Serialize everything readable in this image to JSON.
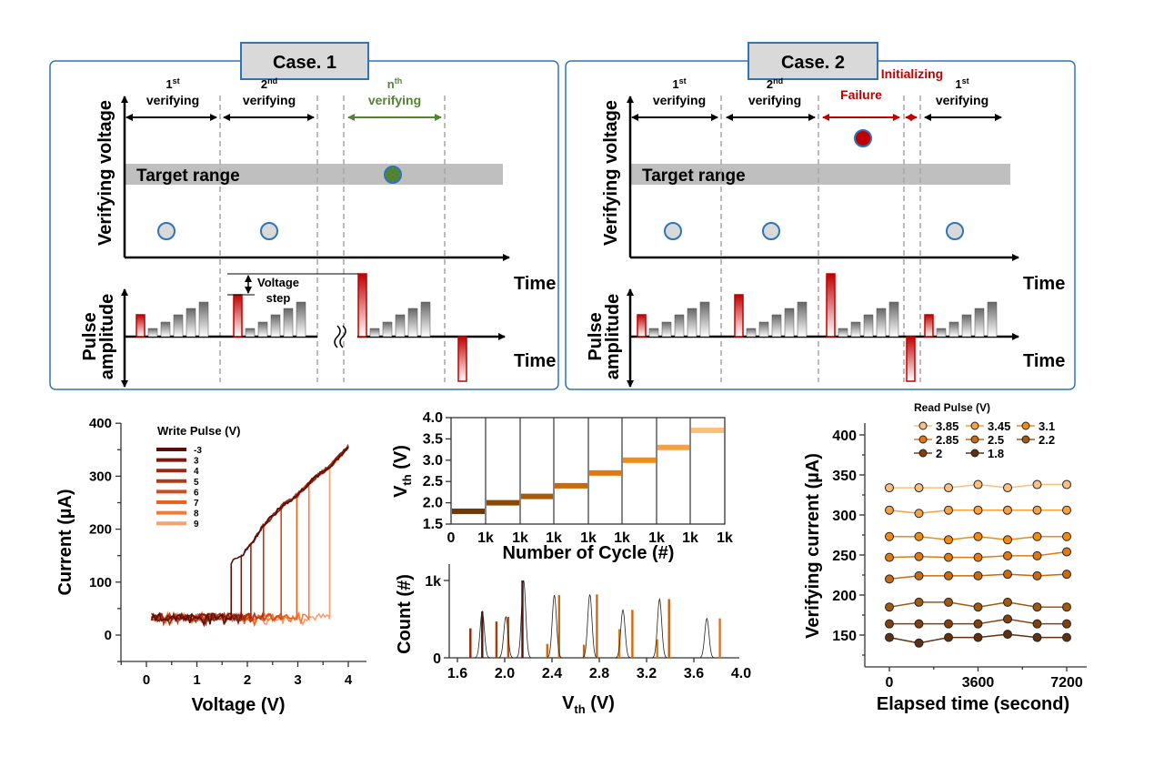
{
  "diagram": {
    "case1": {
      "title": "Case. 1",
      "y_label_top": "Verifying voltage",
      "y_label_bottom": [
        "Pulse",
        "amplitude"
      ],
      "time_label_top": "Time",
      "time_label_bottom": "Time",
      "target_range": "Target range",
      "voltage_step": [
        "Voltage",
        "step"
      ],
      "phases": [
        {
          "num": "1",
          "sup": "st",
          "text": "verifying",
          "color": "#000000"
        },
        {
          "num": "2",
          "sup": "nd",
          "text": "verifying",
          "color": "#000000"
        },
        {
          "num": "n",
          "sup": "th",
          "text": "verifying",
          "color": "#548235"
        }
      ]
    },
    "case2": {
      "title": "Case. 2",
      "y_label_top": "Verifying voltage",
      "y_label_bottom": [
        "Pulse",
        "amplitude"
      ],
      "time_label_top": "Time",
      "time_label_bottom": "Time",
      "target_range": "Target range",
      "phases": [
        {
          "num": "1",
          "sup": "st",
          "text": "verifying",
          "color": "#000000"
        },
        {
          "num": "2",
          "sup": "nd",
          "text": "verifying",
          "color": "#000000"
        },
        {
          "num": "",
          "sup": "",
          "text": "Failure",
          "color": "#c00000"
        },
        {
          "num": "",
          "sup": "",
          "text": "Initializing",
          "color": "#c00000"
        },
        {
          "num": "1",
          "sup": "st",
          "text": "verifying",
          "color": "#000000"
        }
      ]
    },
    "colors": {
      "panel_border": "#2e75b6",
      "title_fill": "#d9d9d9",
      "target_band": "#bfbfbf",
      "success": "#548235",
      "failure": "#c00000",
      "pending": "#d9d9d9"
    }
  },
  "chart_data": [
    {
      "type": "line",
      "xlabel": "Voltage (V)",
      "ylabel": "Current (µA)",
      "xlim": [
        -0.5,
        4.3
      ],
      "ylim": [
        -50,
        400
      ],
      "xticks": [
        "0",
        "1",
        "2",
        "3",
        "4"
      ],
      "yticks": [
        "0",
        "100",
        "200",
        "300",
        "400"
      ],
      "legend_title": "Write Pulse (V)",
      "legend_position": "top-left",
      "off_state_current": 30,
      "on_state_curve": {
        "x": [
          1.68,
          1.75,
          1.9,
          2.1,
          2.3,
          2.5,
          2.7,
          3.0,
          3.25,
          3.65,
          4.0
        ],
        "y": [
          135,
          145,
          152,
          175,
          205,
          225,
          245,
          265,
          290,
          320,
          355
        ]
      },
      "series": [
        {
          "name": "-3",
          "switch_voltage": 1.68,
          "color": "#5a0e0a"
        },
        {
          "name": "3",
          "switch_voltage": 1.88,
          "color": "#7b1a10"
        },
        {
          "name": "4",
          "switch_voltage": 2.07,
          "color": "#9b2a14"
        },
        {
          "name": "5",
          "switch_voltage": 2.32,
          "color": "#b03a1c"
        },
        {
          "name": "6",
          "switch_voltage": 2.67,
          "color": "#cc4e1e"
        },
        {
          "name": "7",
          "switch_voltage": 2.98,
          "color": "#e8641c"
        },
        {
          "name": "8",
          "switch_voltage": 3.22,
          "color": "#f47a3a"
        },
        {
          "name": "9",
          "switch_voltage": 3.63,
          "color": "#f9a070"
        }
      ]
    },
    {
      "type": "scatter",
      "xlabel": "Number of Cycle (#)",
      "ylabel": "V",
      "ylabel_sub": "th",
      "ylabel_unit": " (V)",
      "ylim": [
        1.5,
        4.0
      ],
      "yticks": [
        "1.5",
        "2.0",
        "2.5",
        "3.0",
        "3.5",
        "4.0"
      ],
      "xticks": [
        "0",
        "1k",
        "1k",
        "1k",
        "1k",
        "1k",
        "1k",
        "1k",
        "1k"
      ],
      "cycles_per_segment": 1000,
      "levels": [
        1.8,
        2.0,
        2.15,
        2.4,
        2.7,
        3.0,
        3.3,
        3.7
      ],
      "colors": [
        "#6b3a0a",
        "#8a4a06",
        "#a85a08",
        "#c86a0a",
        "#e07a10",
        "#f28a1c",
        "#f7a040",
        "#fbbf7a"
      ]
    },
    {
      "type": "bar",
      "xlabel": "V",
      "xlabel_sub": "th",
      "xlabel_unit": " (V)",
      "ylabel": "Count (#)",
      "xlim": [
        1.6,
        4.0
      ],
      "ylim": [
        0,
        1000
      ],
      "xticks": [
        "1.6",
        "2.0",
        "2.4",
        "2.8",
        "3.2",
        "3.6",
        "4.0"
      ],
      "yticks": [
        "0",
        "1k"
      ],
      "distributions": [
        {
          "center": 1.81,
          "peak": 600
        },
        {
          "center": 2.01,
          "peak": 530
        },
        {
          "center": 2.16,
          "peak": 1000
        },
        {
          "center": 2.42,
          "peak": 810
        },
        {
          "center": 2.72,
          "peak": 820
        },
        {
          "center": 3.0,
          "peak": 620
        },
        {
          "center": 3.31,
          "peak": 760
        },
        {
          "center": 3.71,
          "peak": 510
        }
      ],
      "spikes": [
        {
          "x": 1.71,
          "count": 380,
          "color": "#8a2a0a"
        },
        {
          "x": 1.81,
          "count": 600,
          "color": "#4a1a08"
        },
        {
          "x": 1.93,
          "count": 470,
          "color": "#a04010"
        },
        {
          "x": 2.03,
          "count": 530,
          "color": "#b85010"
        },
        {
          "x": 2.15,
          "count": 1000,
          "color": "#5a1008"
        },
        {
          "x": 2.36,
          "count": 180,
          "color": "#d06a10"
        },
        {
          "x": 2.46,
          "count": 810,
          "color": "#d06a10"
        },
        {
          "x": 2.67,
          "count": 170,
          "color": "#d06a10"
        },
        {
          "x": 2.78,
          "count": 820,
          "color": "#d06a10"
        },
        {
          "x": 2.97,
          "count": 370,
          "color": "#e07a10"
        },
        {
          "x": 3.08,
          "count": 620,
          "color": "#d06a10"
        },
        {
          "x": 3.29,
          "count": 240,
          "color": "#e07a10"
        },
        {
          "x": 3.39,
          "count": 760,
          "color": "#c86010"
        },
        {
          "x": 3.82,
          "count": 510,
          "color": "#d07a30"
        }
      ]
    },
    {
      "type": "line",
      "xlabel": "Elapsed time (second)",
      "ylabel": "Verifying current (µA)",
      "xlim": [
        -1000,
        8500
      ],
      "ylim": [
        110,
        400
      ],
      "xticks": [
        "0",
        "3600",
        "7200"
      ],
      "yticks": [
        "150",
        "200",
        "250",
        "300",
        "350",
        "400"
      ],
      "legend_title": "Read Pulse (V)",
      "legend_position": "top",
      "x": [
        0,
        1200,
        2400,
        3600,
        4800,
        6000,
        7200
      ],
      "series": [
        {
          "name": "3.85",
          "color": "#fbc080",
          "values": [
            334,
            334,
            334,
            338,
            334,
            338,
            338
          ]
        },
        {
          "name": "3.45",
          "color": "#f9a040",
          "values": [
            306,
            302,
            306,
            306,
            306,
            306,
            306
          ]
        },
        {
          "name": "3.1",
          "color": "#f08a10",
          "values": [
            273,
            273,
            269,
            273,
            269,
            273,
            273
          ]
        },
        {
          "name": "2.85",
          "color": "#e07a10",
          "values": [
            247,
            248,
            247,
            247,
            249,
            249,
            254
          ]
        },
        {
          "name": "2.5",
          "color": "#c86a10",
          "values": [
            220,
            224,
            224,
            224,
            226,
            224,
            226
          ]
        },
        {
          "name": "2.2",
          "color": "#a05a10",
          "values": [
            185,
            191,
            191,
            185,
            191,
            185,
            185
          ]
        },
        {
          "name": "2",
          "color": "#804010",
          "values": [
            164,
            164,
            164,
            164,
            170,
            164,
            164
          ]
        },
        {
          "name": "1.8",
          "color": "#603010",
          "values": [
            147,
            140,
            147,
            147,
            151,
            147,
            147
          ]
        }
      ]
    }
  ]
}
